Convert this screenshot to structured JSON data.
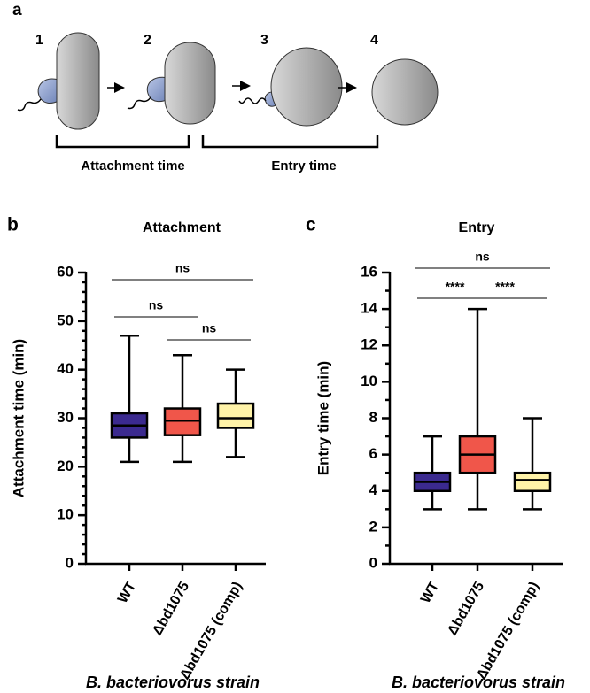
{
  "panel_a": {
    "label": "a",
    "steps": [
      "1",
      "2",
      "3",
      "4"
    ],
    "attachment_label": "Attachment time",
    "entry_label": "Entry time"
  },
  "chart_data": [
    {
      "type": "box",
      "panel_label": "b",
      "title": "Attachment",
      "ylabel": "Attachment time (min)",
      "xlabel": "B. bacteriovorus strain",
      "categories": [
        "WT",
        "Δbd1075",
        "Δbd1075 (comp)"
      ],
      "boxes": [
        {
          "min": 21,
          "q1": 26,
          "median": 28.5,
          "q3": 31,
          "max": 47,
          "color": "#3b2a8f"
        },
        {
          "min": 21,
          "q1": 26.5,
          "median": 29.5,
          "q3": 32,
          "max": 43,
          "color": "#f0564a"
        },
        {
          "min": 22,
          "q1": 28,
          "median": 30,
          "q3": 33,
          "max": 40,
          "color": "#fff3a8"
        }
      ],
      "ylim": [
        0,
        60
      ],
      "yticks": [
        0,
        10,
        20,
        30,
        40,
        50,
        60
      ],
      "minor_yticks": [
        2,
        4,
        6,
        8,
        12,
        14,
        16,
        18,
        22,
        24,
        26,
        28,
        32,
        34,
        36,
        38,
        42,
        44,
        46,
        48,
        52,
        54,
        56,
        58
      ],
      "annotations": [
        {
          "text": "ns",
          "groups": [
            0,
            2
          ]
        },
        {
          "text": "ns",
          "groups": [
            0,
            1
          ]
        },
        {
          "text": "ns",
          "groups": [
            1,
            2
          ]
        }
      ]
    },
    {
      "type": "box",
      "panel_label": "c",
      "title": "Entry",
      "ylabel": "Entry time (min)",
      "xlabel": "B. bacteriovorus strain",
      "categories": [
        "WT",
        "Δbd1075",
        "Δbd1075 (comp)"
      ],
      "boxes": [
        {
          "min": 3,
          "q1": 4,
          "median": 4.5,
          "q3": 5,
          "max": 7,
          "color": "#3b2a8f"
        },
        {
          "min": 3,
          "q1": 5,
          "median": 6,
          "q3": 7,
          "max": 14,
          "color": "#f0564a"
        },
        {
          "min": 3,
          "q1": 4,
          "median": 4.6,
          "q3": 5,
          "max": 8,
          "color": "#fff3a8"
        }
      ],
      "ylim": [
        0,
        16
      ],
      "yticks": [
        0,
        2,
        4,
        6,
        8,
        10,
        12,
        14,
        16
      ],
      "minor_yticks": [
        1,
        3,
        5,
        7,
        9,
        11,
        13,
        15
      ],
      "annotations": [
        {
          "text": "ns",
          "groups": [
            0,
            2
          ]
        },
        {
          "text": "****",
          "groups": [
            0,
            1
          ]
        },
        {
          "text": "****",
          "groups": [
            1,
            2
          ]
        }
      ]
    }
  ]
}
